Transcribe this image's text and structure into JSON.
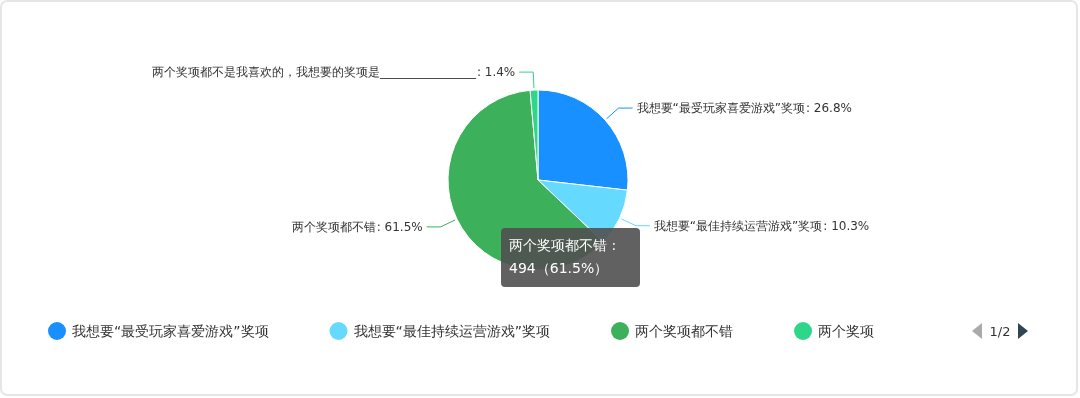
{
  "chart_data": {
    "type": "pie",
    "categories": [
      "我想要“最受玩家喜爱游戏”奖项",
      "我想要“最佳持续运营游戏”奖项",
      "两个奖项都不错",
      "两个奖项都不是我喜欢的，我想要的奖项是________________"
    ],
    "values": [
      26.8,
      10.3,
      61.5,
      1.4
    ],
    "colors": [
      "#1890ff",
      "#66d9ff",
      "#3cb05a",
      "#2ed68a"
    ],
    "value_labels": [
      ": 26.8%",
      ": 10.3%",
      ": 61.5%",
      ": 1.4%"
    ],
    "legend": "bottom",
    "annotations": [
      "两个奖项都不错 :\n494（61.5%）",
      "1/2",
      "两个奖项"
    ]
  }
}
